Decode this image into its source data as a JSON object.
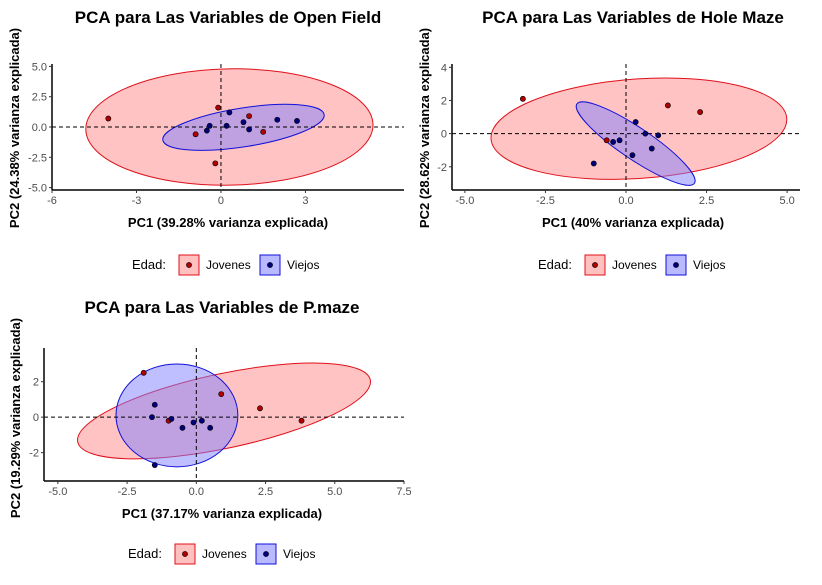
{
  "legend": {
    "title": "Edad:",
    "items": [
      "Jovenes",
      "Viejos"
    ]
  },
  "colors": {
    "jovenes_fill": "#ff9e9e",
    "jovenes_stroke": "#e0101a",
    "jovenes_point": "#b00000",
    "viejos_fill": "#8080ff",
    "viejos_stroke": "#1010d8",
    "viejos_point": "#00007a"
  },
  "chart_data": [
    {
      "type": "scatter",
      "title": "PCA para Las Variables de Open Field",
      "xlabel": "PC1 (39.28% varianza explicada)",
      "ylabel": "PC2 (24.38% varianza explicada)",
      "xlim": [
        -6,
        6.5
      ],
      "ylim": [
        -5.2,
        5.2
      ],
      "xticks": [
        -6,
        -3,
        0,
        3
      ],
      "xticklabels": [
        "-6",
        "-3",
        "0",
        "3"
      ],
      "yticks": [
        -5,
        -2.5,
        0,
        2.5,
        5
      ],
      "yticklabels": [
        "-5.0",
        "-2.5",
        "0.0",
        "2.5",
        "5.0"
      ],
      "series": [
        {
          "name": "Jovenes",
          "x": [
            -4,
            -0.1,
            1,
            -0.2,
            1.5,
            -0.9
          ],
          "y": [
            0.7,
            1.6,
            0.9,
            -3,
            -0.4,
            -0.6
          ],
          "ellipse": {
            "cx": 0.3,
            "cy": 0,
            "rx": 5.1,
            "ry": 4.8,
            "angle": -1
          }
        },
        {
          "name": "Viejos",
          "x": [
            0.3,
            0.8,
            2,
            2.7,
            1,
            -0.5,
            -0.4,
            0.2
          ],
          "y": [
            1.2,
            0.4,
            0.6,
            0.5,
            -0.2,
            -0.3,
            0.1,
            0.1
          ],
          "ellipse": {
            "cx": 0.8,
            "cy": -0.03,
            "rx": 2.9,
            "ry": 1.6,
            "angle": -9
          }
        }
      ]
    },
    {
      "type": "scatter",
      "title": "PCA para Las Variables de Hole Maze",
      "xlabel": "PC1 (40% varianza explicada)",
      "ylabel": "PC2 (28.62% varianza explicada)",
      "xlim": [
        -5.4,
        5.4
      ],
      "ylim": [
        -3.4,
        4.2
      ],
      "xticks": [
        -5,
        -2.5,
        0,
        2.5,
        5
      ],
      "xticklabels": [
        "-5.0",
        "-2.5",
        "0.0",
        "2.5",
        "5.0"
      ],
      "yticks": [
        -2,
        0,
        2,
        4
      ],
      "yticklabels": [
        "-2",
        "0",
        "2",
        "4"
      ],
      "series": [
        {
          "name": "Jovenes",
          "x": [
            -3.2,
            1.3,
            2.3,
            -0.6
          ],
          "y": [
            2.1,
            1.7,
            1.3,
            -0.4
          ],
          "ellipse": {
            "cx": 0.4,
            "cy": 0.3,
            "rx": 4.6,
            "ry": 3.0,
            "angle": -4
          }
        },
        {
          "name": "Viejos",
          "x": [
            0.3,
            0.6,
            1.0,
            -0.2,
            -0.4,
            0.2,
            0.8,
            -1.0
          ],
          "y": [
            0.7,
            0.0,
            -0.1,
            -0.4,
            -0.5,
            -1.3,
            -0.9,
            -1.8
          ],
          "ellipse": {
            "cx": 0.3,
            "cy": -0.6,
            "rx": 2.2,
            "ry": 0.95,
            "angle": 34
          }
        }
      ]
    },
    {
      "type": "scatter",
      "title": "PCA para Las Variables de P.maze",
      "xlabel": "PC1 (37.17% varianza explicada)",
      "ylabel": "PC2 (19.29% varianza explicada)",
      "xlim": [
        -5.5,
        7.5
      ],
      "ylim": [
        -3.6,
        3.9
      ],
      "xticks": [
        -5,
        -2.5,
        0,
        2.5,
        5,
        7.5
      ],
      "xticklabels": [
        "-5.0",
        "-2.5",
        "0.0",
        "2.5",
        "5.0",
        "7.5"
      ],
      "yticks": [
        -2,
        0,
        2
      ],
      "yticklabels": [
        "-2",
        "0",
        "2"
      ],
      "series": [
        {
          "name": "Jovenes",
          "x": [
            -1.9,
            0.9,
            2.3,
            3.8,
            -1.0
          ],
          "y": [
            2.5,
            1.3,
            0.5,
            -0.2,
            -0.2
          ],
          "ellipse": {
            "cx": 1.0,
            "cy": 0.35,
            "rx": 5.4,
            "ry": 2.1,
            "angle": -12
          }
        },
        {
          "name": "Viejos",
          "x": [
            -1.5,
            -1.6,
            0.2,
            -0.5,
            0.5,
            -0.1,
            -1.5,
            -0.9
          ],
          "y": [
            0.7,
            0.0,
            -0.2,
            -0.6,
            -0.6,
            -0.3,
            -2.7,
            -0.1
          ],
          "ellipse": {
            "cx": -0.7,
            "cy": 0.1,
            "rx": 2.2,
            "ry": 2.9,
            "angle": 0
          }
        }
      ]
    }
  ]
}
